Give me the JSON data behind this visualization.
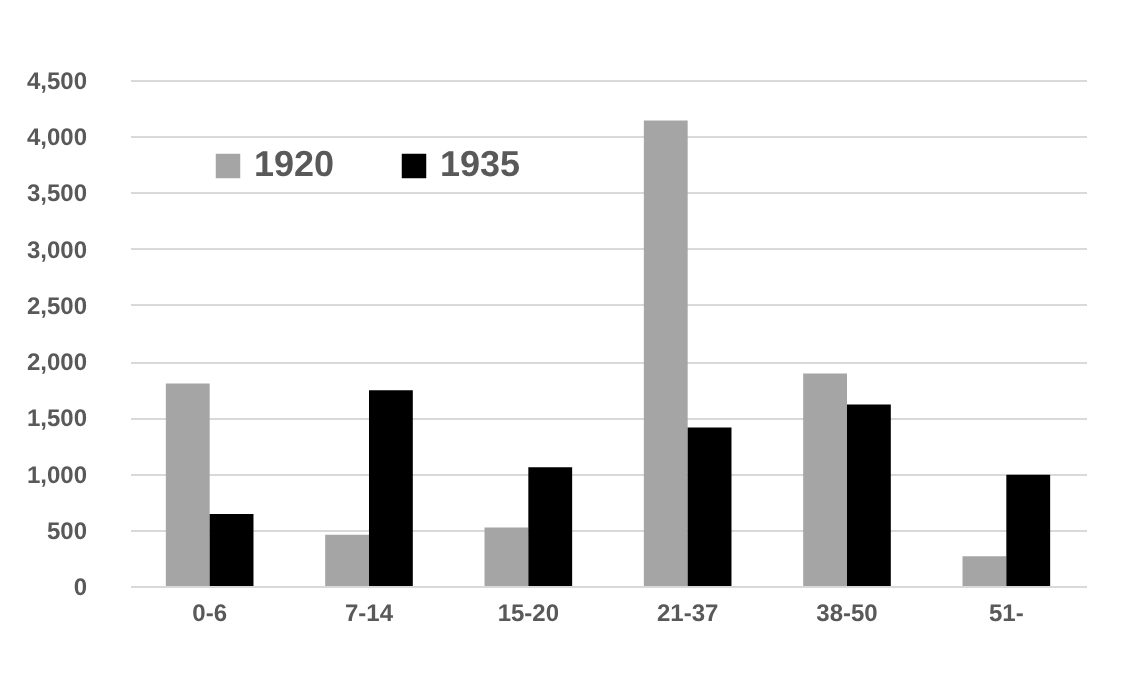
{
  "chart_data": {
    "type": "bar",
    "categories": [
      "0-6",
      "7-14",
      "15-20",
      "21-37",
      "38-50",
      "51-"
    ],
    "series": [
      {
        "name": "1920",
        "color": "#a5a5a5",
        "values": [
          1800,
          455,
          520,
          4140,
          1890,
          265
        ]
      },
      {
        "name": "1935",
        "color": "#000000",
        "values": [
          640,
          1740,
          1055,
          1410,
          1615,
          990
        ]
      }
    ],
    "ylim": [
      0,
      4500
    ],
    "yticks": [
      {
        "value": 0,
        "label": "0"
      },
      {
        "value": 500,
        "label": "500"
      },
      {
        "value": 1000,
        "label": "1,000"
      },
      {
        "value": 1500,
        "label": "1,500"
      },
      {
        "value": 2000,
        "label": "2,000"
      },
      {
        "value": 2500,
        "label": "2,500"
      },
      {
        "value": 3000,
        "label": "3,000"
      },
      {
        "value": 3500,
        "label": "3,500"
      },
      {
        "value": 4000,
        "label": "4,000"
      },
      {
        "value": 4500,
        "label": "4,500"
      }
    ],
    "grid": "y",
    "legend": "top left"
  }
}
